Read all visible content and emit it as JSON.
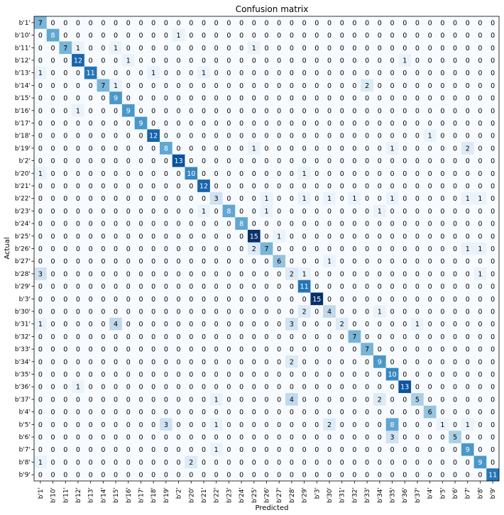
{
  "chart_data": {
    "type": "heatmap",
    "title": "Confusion matrix",
    "xlabel": "Predicted",
    "ylabel": "Actual",
    "colormap": "Blues",
    "value_range": [
      0,
      15
    ],
    "labels": [
      "b'1'",
      "b'10'",
      "b'11'",
      "b'12'",
      "b'13'",
      "b'14'",
      "b'15'",
      "b'16'",
      "b'17'",
      "b'18'",
      "b'19'",
      "b'2'",
      "b'20'",
      "b'21'",
      "b'22'",
      "b'23'",
      "b'24'",
      "b'25'",
      "b'26'",
      "b'27'",
      "b'28'",
      "b'29'",
      "b'3'",
      "b'30'",
      "b'31'",
      "b'32'",
      "b'33'",
      "b'34'",
      "b'35'",
      "b'36'",
      "b'37'",
      "b'4'",
      "b'5'",
      "b'6'",
      "b'7'",
      "b'8'",
      "b'9'"
    ],
    "matrix": [
      [
        7,
        0,
        0,
        0,
        0,
        0,
        0,
        0,
        0,
        0,
        0,
        0,
        0,
        0,
        0,
        0,
        0,
        0,
        0,
        0,
        0,
        0,
        0,
        0,
        0,
        0,
        0,
        0,
        0,
        0,
        0,
        0,
        0,
        0,
        0,
        0,
        0
      ],
      [
        0,
        8,
        0,
        0,
        0,
        0,
        0,
        0,
        0,
        0,
        0,
        1,
        0,
        0,
        0,
        0,
        0,
        0,
        0,
        0,
        0,
        0,
        0,
        0,
        0,
        0,
        0,
        0,
        0,
        0,
        0,
        0,
        0,
        0,
        0,
        0,
        0
      ],
      [
        0,
        0,
        7,
        1,
        0,
        0,
        1,
        0,
        0,
        0,
        0,
        0,
        0,
        0,
        0,
        0,
        0,
        1,
        0,
        0,
        0,
        0,
        0,
        0,
        0,
        0,
        0,
        0,
        0,
        0,
        0,
        0,
        0,
        0,
        0,
        0,
        0
      ],
      [
        0,
        0,
        0,
        12,
        0,
        0,
        0,
        1,
        0,
        0,
        0,
        0,
        0,
        0,
        0,
        0,
        0,
        0,
        0,
        0,
        0,
        0,
        0,
        0,
        0,
        0,
        0,
        0,
        0,
        1,
        0,
        0,
        0,
        0,
        0,
        0,
        0
      ],
      [
        1,
        0,
        0,
        0,
        11,
        0,
        0,
        0,
        0,
        1,
        0,
        0,
        0,
        1,
        0,
        0,
        0,
        0,
        0,
        0,
        0,
        0,
        0,
        0,
        0,
        0,
        0,
        0,
        0,
        0,
        0,
        0,
        0,
        0,
        0,
        0,
        0
      ],
      [
        0,
        0,
        0,
        0,
        0,
        7,
        1,
        0,
        0,
        0,
        0,
        0,
        0,
        0,
        0,
        0,
        0,
        0,
        0,
        0,
        0,
        0,
        0,
        0,
        0,
        0,
        2,
        0,
        0,
        0,
        0,
        0,
        0,
        0,
        0,
        0,
        0
      ],
      [
        0,
        0,
        0,
        0,
        0,
        0,
        9,
        0,
        0,
        0,
        0,
        0,
        0,
        0,
        0,
        0,
        0,
        0,
        0,
        0,
        0,
        0,
        0,
        0,
        0,
        0,
        0,
        0,
        0,
        0,
        0,
        0,
        0,
        0,
        0,
        0,
        0
      ],
      [
        0,
        0,
        0,
        1,
        0,
        0,
        0,
        9,
        0,
        0,
        0,
        0,
        0,
        0,
        0,
        0,
        0,
        0,
        0,
        0,
        0,
        0,
        0,
        0,
        0,
        0,
        0,
        0,
        0,
        0,
        0,
        0,
        0,
        0,
        0,
        0,
        0
      ],
      [
        0,
        0,
        0,
        0,
        0,
        0,
        0,
        0,
        9,
        0,
        0,
        0,
        0,
        0,
        0,
        0,
        0,
        0,
        0,
        0,
        0,
        0,
        0,
        0,
        0,
        0,
        0,
        0,
        0,
        0,
        0,
        0,
        0,
        0,
        0,
        0,
        0
      ],
      [
        0,
        0,
        0,
        0,
        0,
        0,
        0,
        0,
        0,
        12,
        0,
        0,
        0,
        0,
        0,
        0,
        0,
        0,
        0,
        0,
        0,
        0,
        0,
        0,
        0,
        0,
        0,
        0,
        0,
        0,
        0,
        1,
        0,
        0,
        0,
        0,
        0
      ],
      [
        0,
        0,
        0,
        0,
        0,
        0,
        0,
        0,
        0,
        0,
        8,
        0,
        0,
        0,
        0,
        0,
        0,
        1,
        0,
        0,
        0,
        0,
        0,
        0,
        0,
        0,
        0,
        0,
        1,
        0,
        0,
        0,
        0,
        0,
        2,
        0,
        0
      ],
      [
        0,
        0,
        0,
        0,
        0,
        0,
        0,
        0,
        0,
        0,
        0,
        13,
        0,
        0,
        0,
        0,
        0,
        0,
        0,
        0,
        0,
        0,
        0,
        0,
        0,
        0,
        0,
        0,
        0,
        0,
        0,
        0,
        0,
        0,
        0,
        0,
        0
      ],
      [
        1,
        0,
        0,
        0,
        0,
        0,
        0,
        0,
        0,
        0,
        0,
        0,
        10,
        0,
        0,
        0,
        0,
        0,
        0,
        0,
        0,
        1,
        0,
        0,
        0,
        0,
        0,
        0,
        0,
        0,
        0,
        0,
        0,
        0,
        0,
        0,
        0
      ],
      [
        0,
        0,
        0,
        0,
        0,
        0,
        0,
        0,
        0,
        0,
        0,
        0,
        0,
        12,
        0,
        0,
        0,
        0,
        0,
        0,
        0,
        0,
        0,
        0,
        0,
        0,
        0,
        0,
        0,
        0,
        0,
        0,
        0,
        0,
        0,
        0,
        0
      ],
      [
        0,
        0,
        0,
        0,
        0,
        0,
        0,
        0,
        0,
        0,
        0,
        0,
        0,
        0,
        3,
        0,
        0,
        0,
        1,
        0,
        0,
        1,
        0,
        1,
        0,
        1,
        0,
        0,
        1,
        0,
        0,
        0,
        0,
        0,
        1,
        1,
        0
      ],
      [
        0,
        0,
        0,
        0,
        0,
        0,
        0,
        0,
        0,
        0,
        0,
        0,
        0,
        1,
        0,
        8,
        0,
        0,
        1,
        0,
        0,
        0,
        0,
        0,
        0,
        0,
        0,
        1,
        0,
        0,
        0,
        0,
        0,
        0,
        0,
        0,
        0
      ],
      [
        0,
        0,
        0,
        0,
        0,
        0,
        0,
        0,
        0,
        0,
        0,
        0,
        0,
        0,
        0,
        0,
        8,
        0,
        0,
        0,
        0,
        0,
        0,
        0,
        0,
        0,
        0,
        0,
        0,
        0,
        0,
        0,
        0,
        0,
        0,
        0,
        0
      ],
      [
        0,
        0,
        0,
        0,
        0,
        0,
        0,
        0,
        0,
        0,
        0,
        0,
        0,
        0,
        0,
        0,
        0,
        15,
        0,
        1,
        0,
        0,
        0,
        0,
        0,
        0,
        0,
        0,
        0,
        0,
        0,
        0,
        0,
        0,
        0,
        0,
        0
      ],
      [
        0,
        0,
        0,
        0,
        0,
        0,
        0,
        0,
        0,
        0,
        0,
        0,
        0,
        0,
        0,
        0,
        0,
        2,
        7,
        0,
        0,
        0,
        0,
        0,
        0,
        0,
        0,
        0,
        0,
        0,
        0,
        0,
        0,
        0,
        1,
        1,
        0
      ],
      [
        0,
        0,
        0,
        0,
        0,
        0,
        0,
        0,
        0,
        0,
        0,
        0,
        0,
        0,
        0,
        0,
        0,
        0,
        0,
        6,
        0,
        0,
        0,
        1,
        0,
        0,
        0,
        0,
        0,
        0,
        0,
        0,
        0,
        0,
        0,
        0,
        0
      ],
      [
        3,
        0,
        0,
        0,
        0,
        0,
        0,
        0,
        0,
        0,
        0,
        0,
        0,
        0,
        0,
        0,
        0,
        0,
        0,
        0,
        2,
        1,
        0,
        0,
        0,
        0,
        0,
        0,
        0,
        0,
        0,
        0,
        0,
        0,
        0,
        1,
        0
      ],
      [
        0,
        0,
        0,
        0,
        0,
        0,
        0,
        0,
        0,
        0,
        0,
        0,
        0,
        0,
        0,
        0,
        0,
        0,
        0,
        0,
        0,
        11,
        0,
        0,
        0,
        0,
        0,
        0,
        0,
        0,
        0,
        0,
        0,
        0,
        0,
        0,
        0
      ],
      [
        0,
        0,
        0,
        0,
        0,
        0,
        0,
        0,
        0,
        0,
        0,
        0,
        0,
        0,
        0,
        0,
        0,
        0,
        0,
        0,
        0,
        0,
        15,
        0,
        0,
        0,
        0,
        0,
        0,
        0,
        0,
        0,
        0,
        0,
        0,
        0,
        0
      ],
      [
        0,
        0,
        0,
        0,
        0,
        0,
        0,
        0,
        0,
        0,
        0,
        0,
        0,
        0,
        0,
        0,
        0,
        0,
        0,
        0,
        0,
        2,
        0,
        4,
        0,
        0,
        0,
        1,
        0,
        0,
        0,
        0,
        0,
        0,
        0,
        0,
        0
      ],
      [
        1,
        0,
        0,
        0,
        0,
        0,
        4,
        0,
        0,
        0,
        0,
        0,
        0,
        0,
        0,
        0,
        0,
        0,
        0,
        0,
        3,
        0,
        0,
        0,
        2,
        0,
        0,
        0,
        0,
        0,
        1,
        0,
        0,
        0,
        0,
        0,
        0
      ],
      [
        0,
        0,
        0,
        0,
        0,
        0,
        0,
        0,
        0,
        0,
        0,
        0,
        0,
        0,
        0,
        0,
        0,
        0,
        0,
        0,
        0,
        0,
        0,
        0,
        0,
        7,
        0,
        0,
        0,
        0,
        0,
        0,
        0,
        0,
        0,
        0,
        0
      ],
      [
        0,
        0,
        0,
        0,
        0,
        0,
        0,
        0,
        0,
        0,
        0,
        0,
        0,
        0,
        0,
        0,
        0,
        0,
        0,
        0,
        0,
        0,
        0,
        0,
        0,
        0,
        7,
        0,
        0,
        0,
        0,
        0,
        0,
        0,
        0,
        0,
        0
      ],
      [
        0,
        0,
        0,
        0,
        0,
        0,
        0,
        0,
        0,
        0,
        0,
        0,
        0,
        0,
        0,
        0,
        0,
        0,
        0,
        0,
        2,
        0,
        0,
        0,
        0,
        0,
        0,
        9,
        0,
        0,
        0,
        0,
        0,
        0,
        0,
        0,
        0
      ],
      [
        0,
        0,
        0,
        0,
        0,
        0,
        0,
        0,
        0,
        0,
        0,
        0,
        0,
        0,
        0,
        0,
        0,
        0,
        0,
        0,
        0,
        0,
        0,
        0,
        0,
        0,
        0,
        0,
        10,
        0,
        0,
        0,
        0,
        0,
        0,
        0,
        0
      ],
      [
        0,
        0,
        0,
        1,
        0,
        0,
        0,
        0,
        0,
        0,
        0,
        0,
        0,
        0,
        0,
        0,
        0,
        0,
        0,
        0,
        0,
        0,
        0,
        0,
        0,
        0,
        0,
        0,
        0,
        13,
        0,
        0,
        0,
        0,
        0,
        0,
        0
      ],
      [
        0,
        0,
        0,
        0,
        0,
        0,
        0,
        0,
        0,
        0,
        0,
        0,
        0,
        0,
        1,
        0,
        0,
        0,
        0,
        0,
        4,
        0,
        0,
        0,
        0,
        0,
        0,
        2,
        0,
        0,
        5,
        0,
        0,
        0,
        0,
        0,
        0
      ],
      [
        0,
        0,
        0,
        0,
        0,
        0,
        0,
        0,
        0,
        0,
        0,
        0,
        0,
        0,
        0,
        0,
        0,
        0,
        0,
        0,
        0,
        0,
        0,
        0,
        0,
        0,
        0,
        0,
        0,
        0,
        0,
        6,
        0,
        0,
        0,
        0,
        0
      ],
      [
        0,
        0,
        0,
        0,
        0,
        0,
        0,
        0,
        0,
        0,
        3,
        0,
        0,
        0,
        1,
        0,
        0,
        0,
        0,
        0,
        0,
        0,
        0,
        2,
        0,
        0,
        0,
        0,
        8,
        0,
        0,
        0,
        1,
        0,
        1,
        0,
        0
      ],
      [
        0,
        0,
        0,
        0,
        0,
        0,
        0,
        0,
        0,
        0,
        0,
        0,
        0,
        0,
        0,
        0,
        0,
        0,
        0,
        0,
        0,
        0,
        0,
        0,
        0,
        0,
        0,
        0,
        3,
        0,
        0,
        0,
        0,
        5,
        0,
        0,
        0
      ],
      [
        0,
        0,
        0,
        0,
        0,
        0,
        0,
        0,
        0,
        0,
        0,
        0,
        0,
        0,
        1,
        0,
        0,
        0,
        0,
        0,
        0,
        0,
        0,
        0,
        0,
        0,
        0,
        0,
        0,
        0,
        0,
        0,
        0,
        0,
        9,
        0,
        0
      ],
      [
        1,
        0,
        0,
        0,
        0,
        0,
        0,
        0,
        0,
        0,
        0,
        0,
        2,
        0,
        0,
        0,
        0,
        0,
        0,
        0,
        0,
        0,
        0,
        0,
        0,
        0,
        0,
        0,
        0,
        0,
        0,
        0,
        0,
        0,
        0,
        9,
        0
      ],
      [
        0,
        0,
        0,
        0,
        0,
        0,
        0,
        0,
        0,
        0,
        0,
        0,
        0,
        0,
        0,
        0,
        0,
        0,
        0,
        0,
        0,
        0,
        0,
        0,
        0,
        0,
        0,
        0,
        0,
        0,
        0,
        0,
        0,
        0,
        0,
        0,
        11
      ]
    ]
  }
}
